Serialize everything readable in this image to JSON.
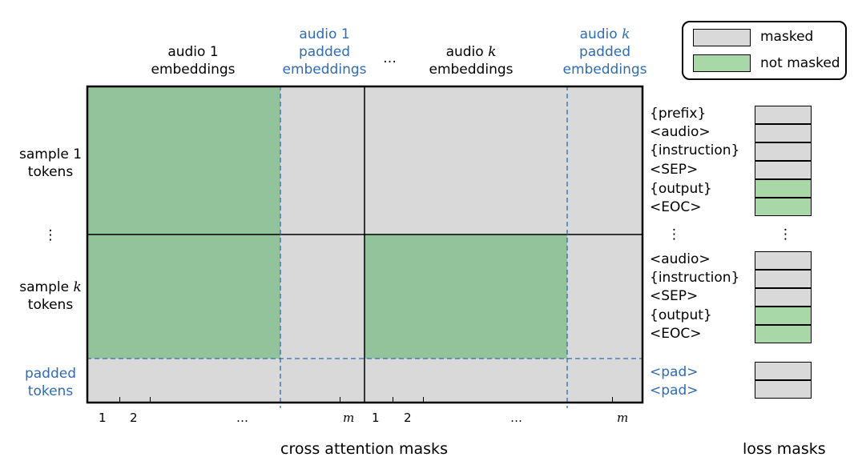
{
  "columns": {
    "audio1": [
      "audio 1",
      "embeddings"
    ],
    "audio1_padded": [
      "audio 1",
      "padded",
      "embeddings"
    ],
    "ellipsis": "…",
    "audiok_prefix": "audio",
    "audiok_var": "k",
    "audiok_line2": "embeddings",
    "audiok_padded_var": "k",
    "audiok_padded_lines": [
      "padded",
      "embeddings"
    ]
  },
  "legend": {
    "masked": "masked",
    "not_masked": "not masked",
    "masked_color": "#d9d9d9",
    "not_masked_color": "#a8d8a8"
  },
  "rows": {
    "sample1": [
      "sample 1",
      "tokens"
    ],
    "vdots": "⋮",
    "samplek_prefix": "sample",
    "samplek_var": "k",
    "samplek_line2": "tokens",
    "padded": [
      "padded",
      "tokens"
    ]
  },
  "axis": {
    "ticks_block1": [
      "1",
      "2",
      "…",
      "m"
    ],
    "ticks_block2": [
      "1",
      "2",
      "…",
      "m"
    ]
  },
  "token_labels": {
    "sample1": [
      "{prefix}",
      "<audio>",
      "{instruction}",
      "<SEP>",
      "{output}",
      "<EOC>"
    ],
    "samplek": [
      "<audio>",
      "{instruction}",
      "<SEP>",
      "{output}",
      "<EOC>"
    ],
    "pad": [
      "<pad>",
      "<pad>"
    ],
    "vdots": "⋮"
  },
  "loss_masks": {
    "sample1": [
      "masked",
      "masked",
      "masked",
      "masked",
      "not masked",
      "not masked"
    ],
    "samplek": [
      "masked",
      "masked",
      "masked",
      "not masked",
      "not masked"
    ],
    "pad": [
      "masked",
      "masked"
    ]
  },
  "captions": {
    "cross": "cross attention masks",
    "loss": "loss masks"
  },
  "colors": {
    "green": "#93c39b",
    "grey": "#d9d9d9",
    "blue": "#2e6cb4"
  }
}
